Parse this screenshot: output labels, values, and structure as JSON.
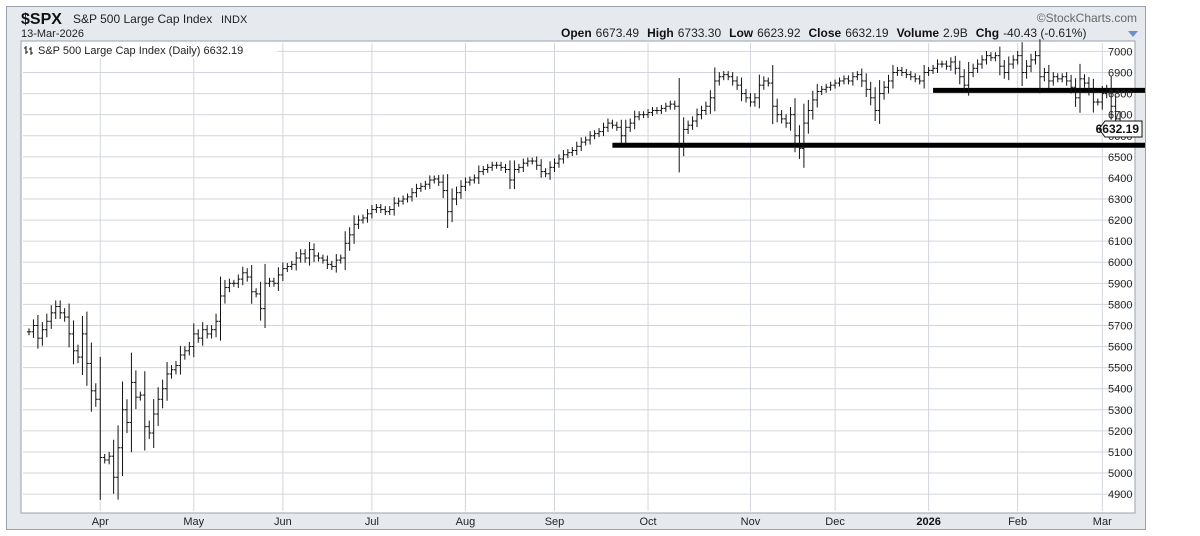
{
  "header": {
    "symbol": "$SPX",
    "name": "S&P 500 Large Cap Index",
    "exchange": "INDX",
    "date": "13-Mar-2026",
    "brand": "©StockCharts.com",
    "open_label": "Open",
    "open": "6673.49",
    "high_label": "High",
    "high": "6733.30",
    "low_label": "Low",
    "low": "6623.92",
    "close_label": "Close",
    "close": "6632.19",
    "volume_label": "Volume",
    "volume": "2.9B",
    "chg_label": "Chg",
    "chg": "-40.43 (-0.61%)"
  },
  "legend": {
    "text": "S&P 500 Large Cap Index (Daily) 6632.19"
  },
  "price_label": "6632.19",
  "colors": {
    "bars": "#111111",
    "grid": "#d2d6dc",
    "plot_bg": "#ffffff",
    "frame_bg": "#e6eaef"
  },
  "chart_data": {
    "type": "ohlc",
    "ylim": [
      4820,
      7040
    ],
    "y_ticks": [
      4900,
      5000,
      5100,
      5200,
      5300,
      5400,
      5500,
      5600,
      5700,
      5800,
      5900,
      6000,
      6100,
      6200,
      6300,
      6400,
      6500,
      6600,
      6700,
      6800,
      6900,
      7000
    ],
    "x_labels": [
      {
        "label": "Apr",
        "index": 16,
        "bold": false
      },
      {
        "label": "May",
        "index": 37,
        "bold": false
      },
      {
        "label": "Jun",
        "index": 57,
        "bold": false
      },
      {
        "label": "Jul",
        "index": 77,
        "bold": false
      },
      {
        "label": "Aug",
        "index": 98,
        "bold": false
      },
      {
        "label": "Sep",
        "index": 118,
        "bold": false
      },
      {
        "label": "Oct",
        "index": 139,
        "bold": false
      },
      {
        "label": "Nov",
        "index": 162,
        "bold": false
      },
      {
        "label": "Dec",
        "index": 181,
        "bold": false
      },
      {
        "label": "2026",
        "index": 202,
        "bold": true
      },
      {
        "label": "Feb",
        "index": 222,
        "bold": false
      },
      {
        "label": "Mar",
        "index": 241,
        "bold": false
      }
    ],
    "support_lines": [
      {
        "y": 6555,
        "from_index": 131,
        "to_index": 261
      },
      {
        "y": 6815,
        "from_index": 203,
        "to_index": 263
      }
    ],
    "series": [
      {
        "close": [
          5670,
          5700,
          5640,
          5680,
          5720,
          5760,
          5790,
          5760,
          5740,
          5660,
          5580,
          5550,
          5660,
          5520,
          5390,
          5350,
          5074,
          5062,
          5080,
          4980,
          5120,
          5300,
          5240,
          5430,
          5360,
          5370,
          5220,
          5190,
          5280,
          5350,
          5400,
          5470,
          5490,
          5510,
          5560,
          5580,
          5600,
          5660,
          5640,
          5680,
          5660,
          5680,
          5720,
          5840,
          5880,
          5900,
          5900,
          5920,
          5950,
          5930,
          5860,
          5850,
          5780,
          5900,
          5910,
          5900,
          5940,
          5970,
          5980,
          5990,
          6020,
          6040,
          6020,
          6060,
          6030,
          6020,
          6010,
          5990,
          5980,
          6010,
          6020,
          6090,
          6130,
          6180,
          6200,
          6210,
          6230,
          6250,
          6260,
          6250,
          6240,
          6250,
          6280,
          6290,
          6300,
          6310,
          6330,
          6350,
          6360,
          6370,
          6390,
          6395,
          6380,
          6340,
          6240,
          6300,
          6330,
          6360,
          6380,
          6390,
          6400,
          6430,
          6440,
          6450,
          6460,
          6460,
          6450,
          6440,
          6390,
          6440,
          6450,
          6470,
          6480,
          6480,
          6460,
          6430,
          6420,
          6450,
          6470,
          6490,
          6510,
          6520,
          6530,
          6550,
          6570,
          6580,
          6600,
          6610,
          6620,
          6640,
          6660,
          6650,
          6640,
          6600,
          6640,
          6660,
          6690,
          6700,
          6700,
          6710,
          6720,
          6720,
          6730,
          6740,
          6750,
          6740,
          6560,
          6630,
          6650,
          6670,
          6700,
          6720,
          6740,
          6780,
          6860,
          6880,
          6890,
          6880,
          6860,
          6840,
          6800,
          6780,
          6760,
          6780,
          6840,
          6860,
          6850,
          6740,
          6700,
          6680,
          6660,
          6700,
          6600,
          6540,
          6660,
          6720,
          6770,
          6810,
          6820,
          6830,
          6840,
          6850,
          6860,
          6870,
          6860,
          6880,
          6890,
          6860,
          6820,
          6780,
          6720,
          6800,
          6830,
          6860,
          6900,
          6910,
          6900,
          6890,
          6880,
          6870,
          6860,
          6900,
          6910,
          6920,
          6940,
          6940,
          6930,
          6950,
          6920,
          6880,
          6840,
          6900,
          6920,
          6940,
          6960,
          6980,
          6970,
          6980,
          6930,
          6900,
          6940,
          6960,
          6980,
          6900,
          6930,
          6960,
          6980,
          6880,
          6900,
          6860,
          6880,
          6870,
          6880,
          6860,
          6830,
          6780,
          6870,
          6850,
          6820,
          6760,
          6760,
          6800,
          6820,
          6740,
          6680,
          6640,
          6632
        ]
      }
    ]
  }
}
